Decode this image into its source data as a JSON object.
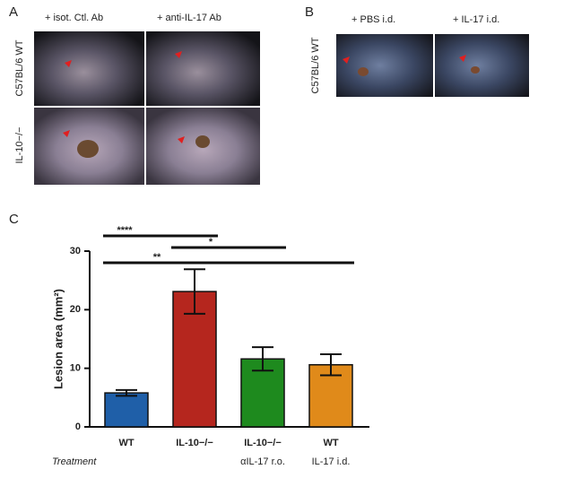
{
  "panel_a": {
    "label": "A",
    "columns": [
      "+ isot. Ctl. Ab",
      "+ anti-IL-17 Ab"
    ],
    "rows": [
      "C57BL/6 WT",
      "IL-10−/−"
    ]
  },
  "panel_b": {
    "label": "B",
    "columns": [
      "+ PBS i.d.",
      "+ IL-17 i.d."
    ],
    "rows": [
      "C57BL/6 WT"
    ]
  },
  "panel_c": {
    "label": "C"
  },
  "chart_data": {
    "type": "bar",
    "ylabel": "Lesion area (mm²)",
    "xlabel": "Treatment",
    "categories": [
      "WT",
      "IL-10−/−",
      "IL-10−/−",
      "WT"
    ],
    "sublabels": [
      null,
      null,
      "αIL-17 r.o.",
      "IL-17 i.d."
    ],
    "values": [
      5.8,
      23.1,
      11.6,
      10.6
    ],
    "errors": [
      0.5,
      3.8,
      2.0,
      1.8
    ],
    "colors": [
      "#1f5fa8",
      "#b5261e",
      "#1e8a1e",
      "#e08a1a"
    ],
    "ylim": [
      0,
      30
    ],
    "yticks": [
      0,
      10,
      20,
      30
    ],
    "significance": [
      {
        "label": "****",
        "from": 0,
        "to": 1
      },
      {
        "label": "*",
        "from": 1,
        "to": 2
      },
      {
        "label": "**",
        "from": 0,
        "to": 3
      }
    ]
  }
}
